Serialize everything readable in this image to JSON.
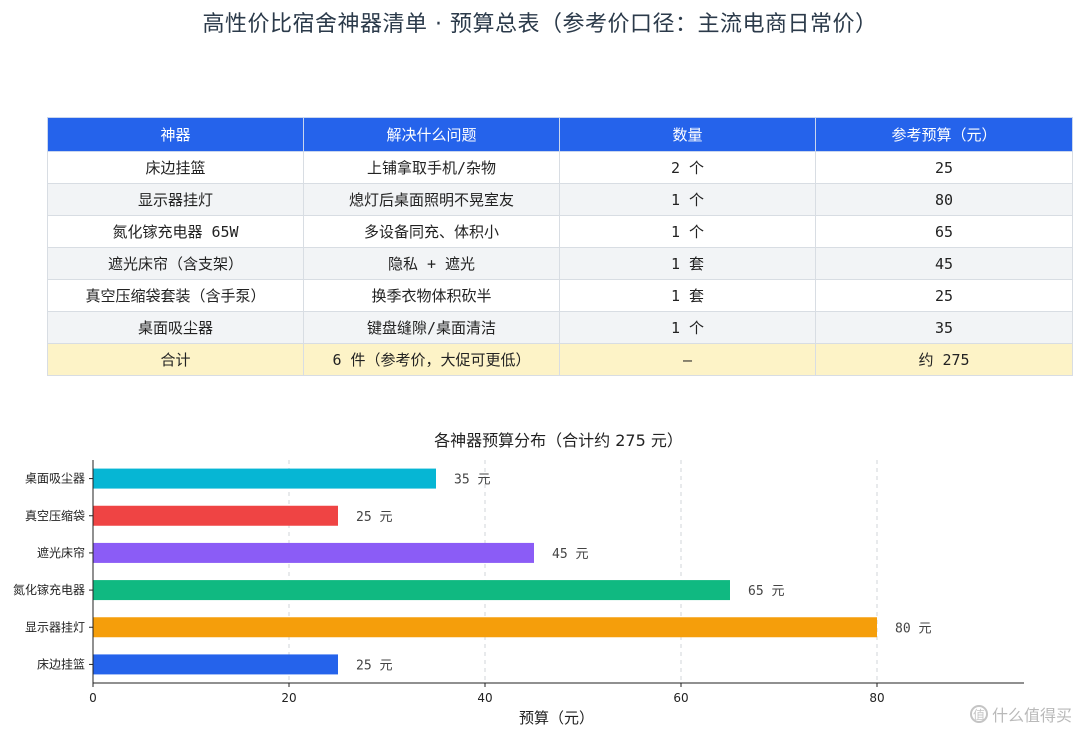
{
  "page_title": "高性价比宿舍神器清单 · 预算总表（参考价口径：主流电商日常价）",
  "table": {
    "headers": [
      "神器",
      "解决什么问题",
      "数量",
      "参考预算（元）"
    ],
    "rows": [
      [
        "床边挂篮",
        "上铺拿取手机/杂物",
        "2 个",
        "25"
      ],
      [
        "显示器挂灯",
        "熄灯后桌面照明不晃室友",
        "1 个",
        "80"
      ],
      [
        "氮化镓充电器 65W",
        "多设备同充、体积小",
        "1 个",
        "65"
      ],
      [
        "遮光床帘（含支架）",
        "隐私 + 遮光",
        "1 套",
        "45"
      ],
      [
        "真空压缩袋套装（含手泵）",
        "换季衣物体积砍半",
        "1 套",
        "25"
      ],
      [
        "桌面吸尘器",
        "键盘缝隙/桌面清洁",
        "1 个",
        "35"
      ]
    ],
    "total": [
      "合计",
      "6 件（参考价，大促可更低）",
      "—",
      "约 275"
    ]
  },
  "chart_data": {
    "type": "bar",
    "orientation": "horizontal",
    "title": "各神器预算分布（合计约 275 元）",
    "xlabel": "预算（元）",
    "ylabel": "",
    "categories": [
      "床边挂篮",
      "显示器挂灯",
      "氮化镓充电器",
      "遮光床帘",
      "真空压缩袋",
      "桌面吸尘器"
    ],
    "values": [
      25,
      80,
      65,
      45,
      25,
      35
    ],
    "value_labels": [
      "25 元",
      "80 元",
      "65 元",
      "45 元",
      "25 元",
      "35 元"
    ],
    "colors": [
      "#2563eb",
      "#f59e0b",
      "#10b981",
      "#8b5cf6",
      "#ef4444",
      "#06b6d4"
    ],
    "xlim": [
      0,
      95
    ],
    "xticks": [
      0,
      20,
      40,
      60,
      80
    ],
    "grid": "x-dashed"
  },
  "watermark": {
    "icon": "zhi-icon",
    "text": "什么值得买"
  }
}
